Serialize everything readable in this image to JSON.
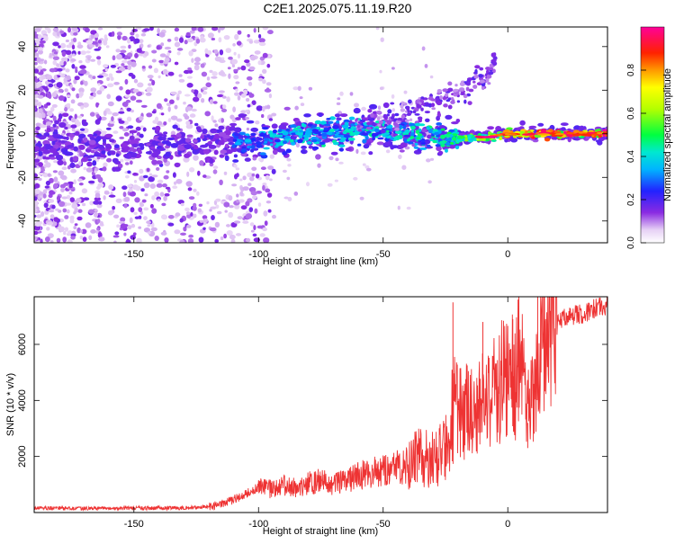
{
  "title": "C2E1.2025.075.11.19.R20",
  "colors": {
    "line": "#ee3333",
    "axis": "#000000",
    "scatter_faint": "#e0ccf5",
    "scatter_light": "#b17ee8",
    "scatter_mid": "#7d1fe0",
    "ridge_core": "#00c8c8"
  },
  "colorbar": {
    "label": "Normalized spectral amplitude",
    "range": [
      0,
      1
    ],
    "ticks": [
      "0.0",
      "0.2",
      "0.4",
      "0.6",
      "0.8"
    ],
    "tick_values": [
      0.0,
      0.2,
      0.4,
      0.6,
      0.8
    ],
    "stops": [
      {
        "v": 0.0,
        "c": "#ffffff"
      },
      {
        "v": 0.06,
        "c": "#e6d0f5"
      },
      {
        "v": 0.14,
        "c": "#8a2be2"
      },
      {
        "v": 0.24,
        "c": "#2222ff"
      },
      {
        "v": 0.34,
        "c": "#00b4ff"
      },
      {
        "v": 0.42,
        "c": "#00e8d0"
      },
      {
        "v": 0.5,
        "c": "#00ff40"
      },
      {
        "v": 0.62,
        "c": "#b4ff00"
      },
      {
        "v": 0.72,
        "c": "#ffff00"
      },
      {
        "v": 0.8,
        "c": "#ff9900"
      },
      {
        "v": 0.88,
        "c": "#ff2200"
      },
      {
        "v": 1.0,
        "c": "#ff0099"
      }
    ]
  },
  "chart_data": [
    {
      "type": "heatmap",
      "name": "spectrogram",
      "title": "C2E1.2025.075.11.19.R20",
      "xlabel": "Height of straight line (km)",
      "ylabel": "Frequency (Hz)",
      "xlim": [
        -190,
        40
      ],
      "ylim": [
        -50,
        49
      ],
      "xticks": [
        -150,
        -100,
        -50,
        0
      ],
      "xticklabels": [
        "-150",
        "-100",
        "-50",
        "0"
      ],
      "yticks": [
        -40,
        -20,
        0,
        20,
        40
      ],
      "yticklabels": [
        "-40",
        "-20",
        "0",
        "20",
        "40"
      ],
      "grid": false,
      "ridge": {
        "description": "central high-amplitude band near 0 Hz",
        "points": [
          {
            "x": -190,
            "y": -6,
            "amp": 0.2
          },
          {
            "x": -150,
            "y": -5,
            "amp": 0.2
          },
          {
            "x": -120,
            "y": -5,
            "amp": 0.25
          },
          {
            "x": -100,
            "y": -3,
            "amp": 0.35
          },
          {
            "x": -80,
            "y": 0,
            "amp": 0.4
          },
          {
            "x": -60,
            "y": 2,
            "amp": 0.4
          },
          {
            "x": -40,
            "y": 0,
            "amp": 0.4
          },
          {
            "x": -25,
            "y": -2,
            "amp": 0.45
          },
          {
            "x": -15,
            "y": -2,
            "amp": 0.55
          },
          {
            "x": -5,
            "y": -1,
            "amp": 0.65
          },
          {
            "x": 0,
            "y": 0,
            "amp": 0.8
          },
          {
            "x": 15,
            "y": 0,
            "amp": 0.85
          },
          {
            "x": 40,
            "y": 0,
            "amp": 0.9
          }
        ]
      },
      "upper_branch": [
        {
          "x": -60,
          "y": 6
        },
        {
          "x": -45,
          "y": 8
        },
        {
          "x": -30,
          "y": 15
        },
        {
          "x": -20,
          "y": 19
        },
        {
          "x": -10,
          "y": 24
        },
        {
          "x": -5,
          "y": 33
        }
      ]
    },
    {
      "type": "line",
      "name": "snr",
      "xlabel": "Height of straight line (km)",
      "ylabel": "SNR (10 * v/v)",
      "xlim": [
        -190,
        40
      ],
      "ylim": [
        0,
        7700
      ],
      "xticks": [
        -150,
        -100,
        -50,
        0
      ],
      "xticklabels": [
        "-150",
        "-100",
        "-50",
        "0"
      ],
      "yticks": [
        2000,
        4000,
        6000
      ],
      "yticklabels": [
        "2000",
        "4000",
        "6000"
      ],
      "grid": false,
      "series": [
        {
          "name": "SNR",
          "x": [
            -190,
            -175,
            -160,
            -150,
            -140,
            -130,
            -120,
            -115,
            -110,
            -105,
            -100,
            -95,
            -90,
            -85,
            -80,
            -75,
            -70,
            -65,
            -60,
            -55,
            -50,
            -45,
            -40,
            -35,
            -30,
            -25,
            -22,
            -20,
            -18,
            -15,
            -12,
            -10,
            -8,
            -5,
            -3,
            0,
            3,
            5,
            8,
            10,
            12,
            15,
            18,
            20,
            25,
            30,
            35,
            40
          ],
          "y": [
            150,
            140,
            140,
            150,
            150,
            160,
            200,
            280,
            450,
            650,
            900,
            800,
            950,
            850,
            1000,
            1100,
            950,
            1100,
            1250,
            1350,
            1400,
            1500,
            1700,
            1900,
            1900,
            2200,
            3300,
            3900,
            3200,
            3700,
            3500,
            3900,
            4200,
            4100,
            4400,
            4700,
            4600,
            5300,
            3200,
            4100,
            4900,
            5800,
            6200,
            6800,
            7000,
            7050,
            7250,
            7350
          ]
        }
      ],
      "spikes": [
        {
          "x": -22,
          "y": 7500
        },
        {
          "x": -10,
          "y": 6800
        },
        {
          "x": 2,
          "y": 6900
        },
        {
          "x": 8,
          "y": 2300
        },
        {
          "x": 12,
          "y": 7700
        }
      ]
    }
  ]
}
